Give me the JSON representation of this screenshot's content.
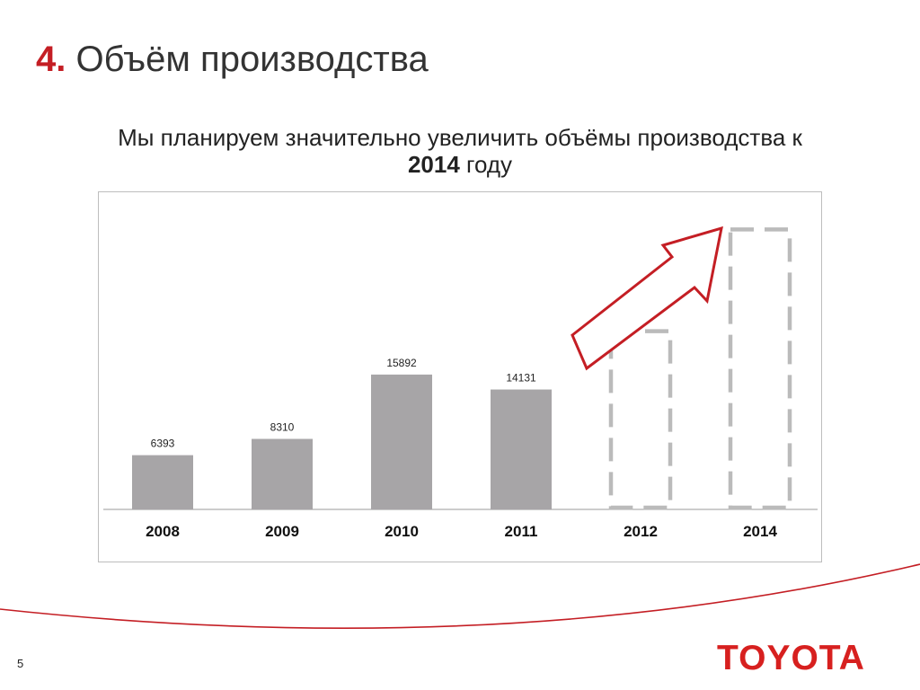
{
  "slide": {
    "title_number": "4.",
    "title_text": "Объём производства",
    "subtitle_part1": "Мы планируем значительно увеличить объёмы производства к ",
    "subtitle_year": "2014",
    "subtitle_part2": " году",
    "page_number": "5",
    "logo": "TOYOTA"
  },
  "colors": {
    "accent": "#c41e24",
    "bar": "#a7a5a7",
    "projection_outline": "#bbbbbb",
    "logo": "#d7201f"
  },
  "chart_data": {
    "type": "bar",
    "categories": [
      "2008",
      "2009",
      "2010",
      "2011",
      "2012",
      "2014"
    ],
    "values": [
      6393,
      8310,
      15892,
      14131,
      null,
      null
    ],
    "data_labels": [
      "6393",
      "8310",
      "15892",
      "14131",
      "",
      ""
    ],
    "projected_categories": [
      "2012",
      "2014"
    ],
    "projected_values_estimate": [
      21000,
      33000
    ],
    "annotation": "red upward arrow indicating planned growth",
    "title": "",
    "xlabel": "",
    "ylabel": "",
    "ylim": [
      0,
      36000
    ],
    "grid": false,
    "legend": "none"
  }
}
